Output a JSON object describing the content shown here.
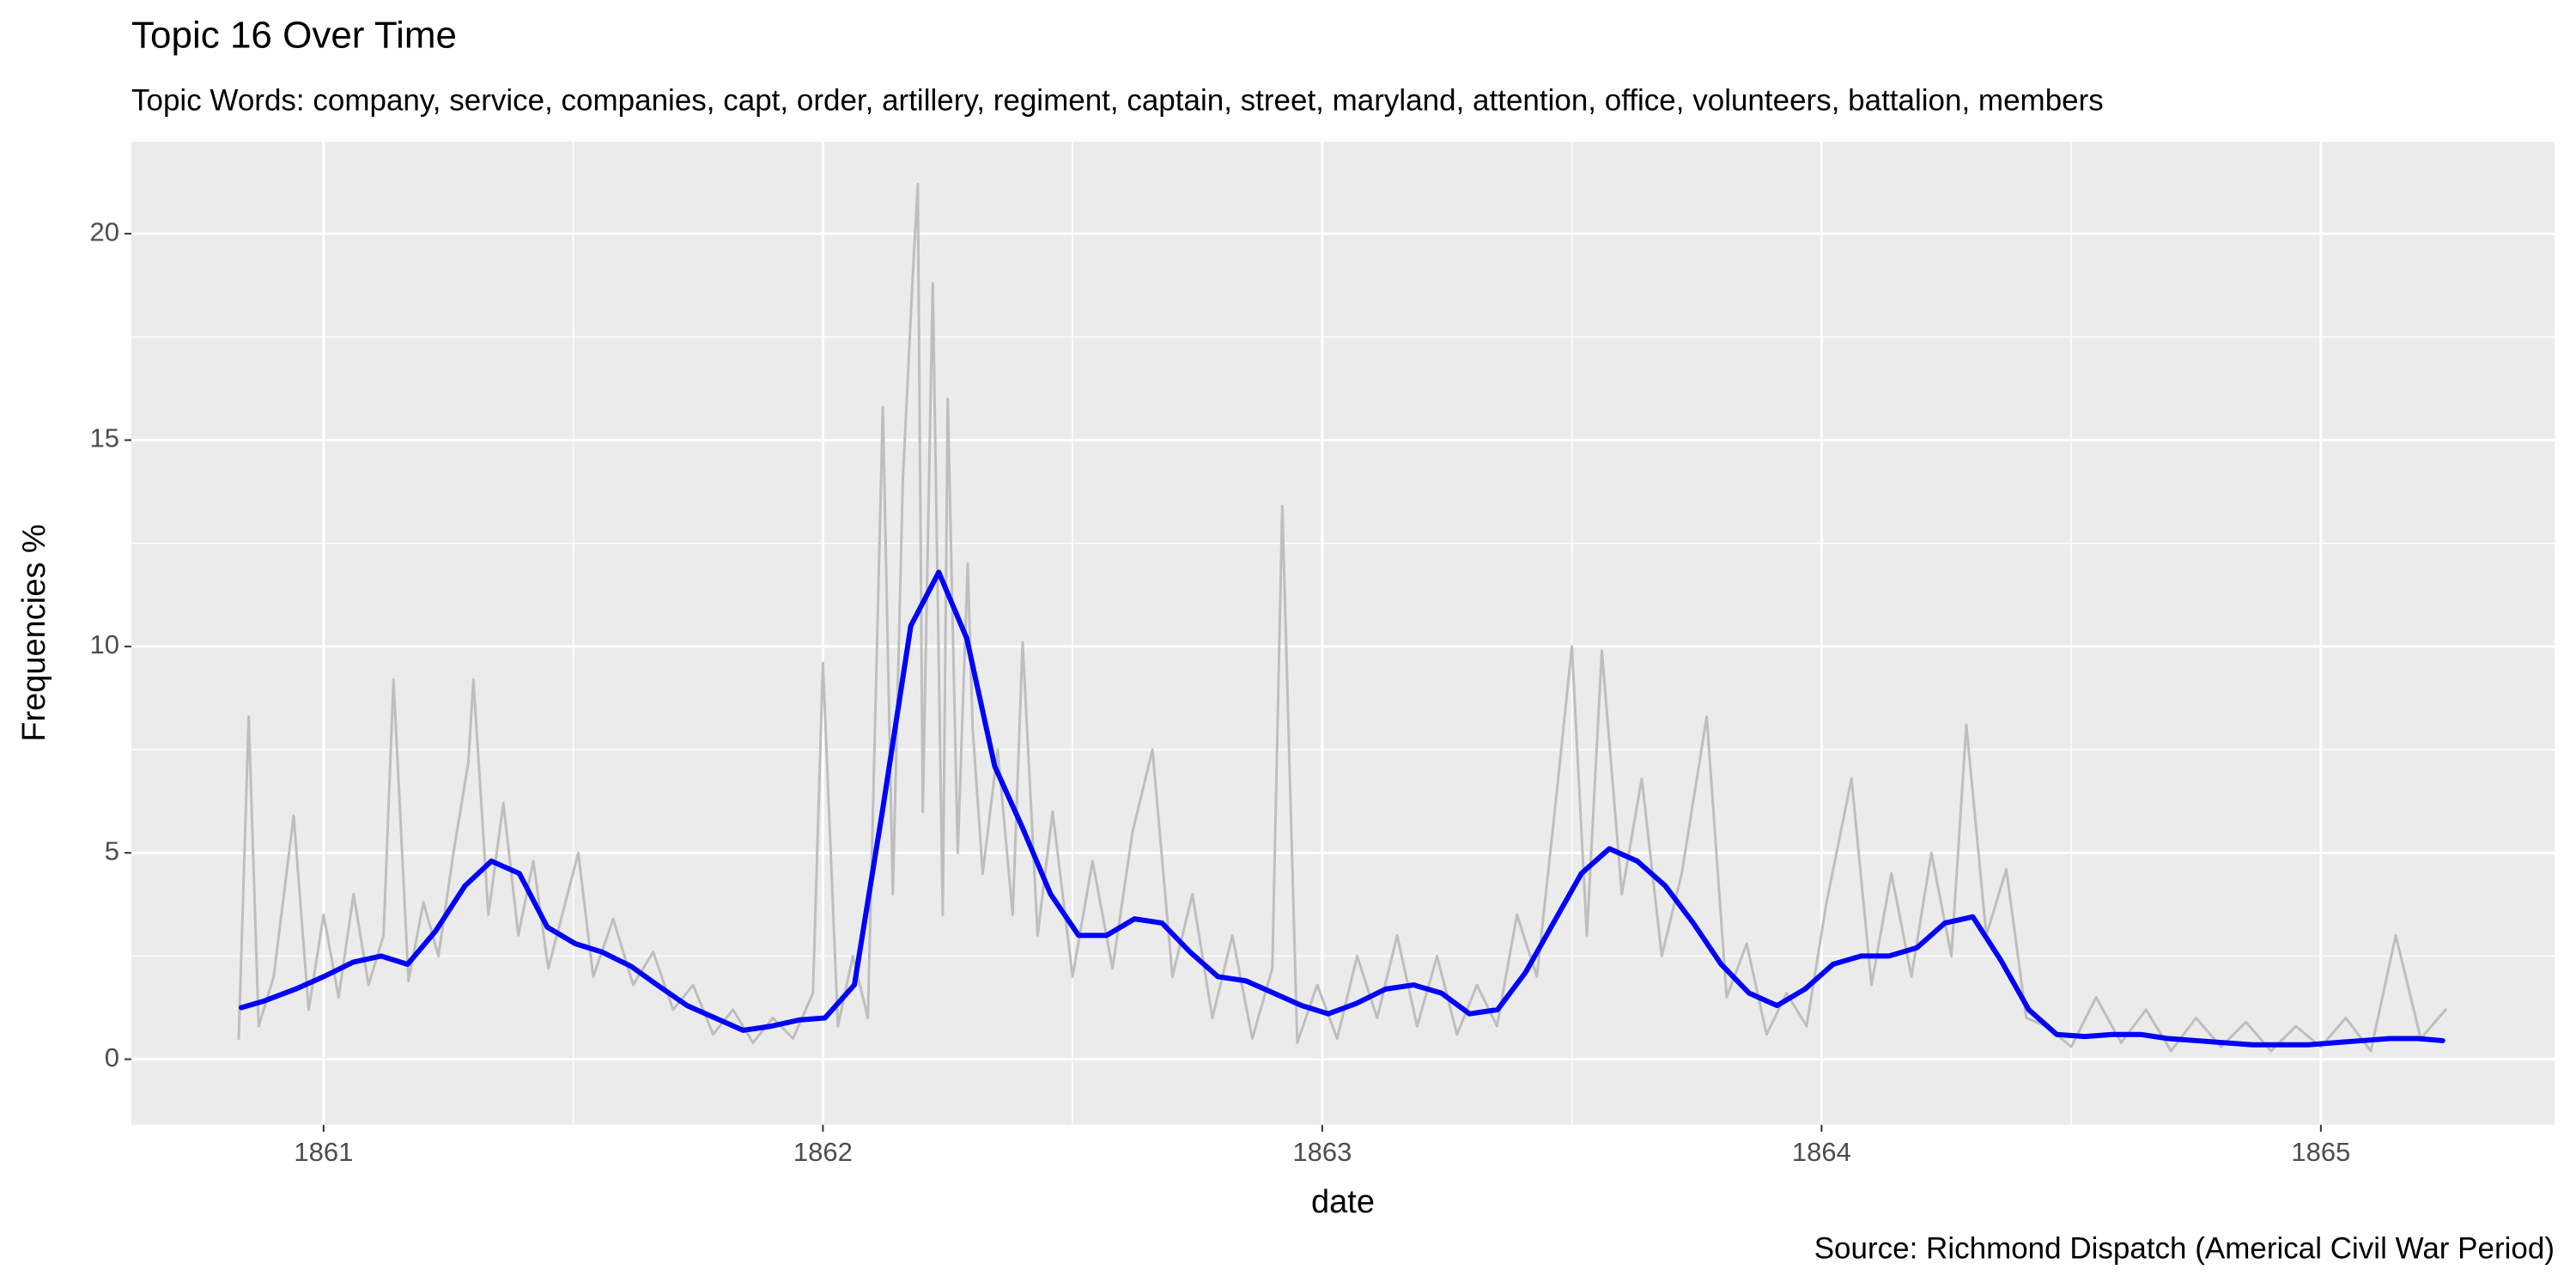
{
  "chart_data": {
    "type": "line",
    "title": "Topic 16 Over Time",
    "subtitle": "Topic Words: company, service, companies, capt, order, artillery, regiment, captain, street, maryland, attention, office, volunteers, battalion, members",
    "caption": "Source: Richmond Dispatch (Americal Civil War Period)",
    "x_label": "date",
    "y_label": "Frequencies %",
    "xlim": [
      1860.615,
      1865.468
    ],
    "ylim": [
      -1.59,
      22.23
    ],
    "xticks": [
      1861,
      1862,
      1863,
      1864,
      1865
    ],
    "yticks": [
      0,
      5,
      10,
      15,
      20
    ],
    "grid": true,
    "series": [
      {
        "color": "#bebebe",
        "x": [
          1860.83,
          1860.85,
          1860.87,
          1860.9,
          1860.94,
          1860.97,
          1861.0,
          1861.03,
          1861.06,
          1861.09,
          1861.12,
          1861.14,
          1861.17,
          1861.2,
          1861.23,
          1861.26,
          1861.29,
          1861.3,
          1861.33,
          1861.36,
          1861.39,
          1861.42,
          1861.45,
          1861.48,
          1861.51,
          1861.54,
          1861.58,
          1861.62,
          1861.66,
          1861.7,
          1861.74,
          1861.78,
          1861.82,
          1861.86,
          1861.9,
          1861.94,
          1861.98,
          1862.0,
          1862.03,
          1862.06,
          1862.09,
          1862.12,
          1862.14,
          1862.16,
          1862.18,
          1862.19,
          1862.2,
          1862.22,
          1862.24,
          1862.25,
          1862.27,
          1862.29,
          1862.3,
          1862.32,
          1862.35,
          1862.38,
          1862.4,
          1862.43,
          1862.46,
          1862.5,
          1862.54,
          1862.58,
          1862.62,
          1862.66,
          1862.7,
          1862.74,
          1862.78,
          1862.82,
          1862.86,
          1862.9,
          1862.92,
          1862.95,
          1862.99,
          1863.03,
          1863.07,
          1863.11,
          1863.15,
          1863.19,
          1863.23,
          1863.27,
          1863.31,
          1863.35,
          1863.39,
          1863.43,
          1863.47,
          1863.5,
          1863.53,
          1863.56,
          1863.6,
          1863.64,
          1863.68,
          1863.72,
          1863.77,
          1863.81,
          1863.85,
          1863.89,
          1863.93,
          1863.97,
          1864.01,
          1864.06,
          1864.1,
          1864.14,
          1864.18,
          1864.22,
          1864.26,
          1864.29,
          1864.33,
          1864.37,
          1864.41,
          1864.45,
          1864.5,
          1864.55,
          1864.6,
          1864.65,
          1864.7,
          1864.75,
          1864.8,
          1864.85,
          1864.9,
          1864.95,
          1865.0,
          1865.05,
          1865.1,
          1865.15,
          1865.2,
          1865.25
        ],
        "values": [
          0.5,
          8.3,
          0.8,
          2.0,
          5.9,
          1.2,
          3.5,
          1.5,
          4.0,
          1.8,
          3.0,
          9.2,
          1.9,
          3.8,
          2.5,
          5.0,
          7.2,
          9.2,
          3.5,
          6.2,
          3.0,
          4.8,
          2.2,
          3.6,
          5.0,
          2.0,
          3.4,
          1.8,
          2.6,
          1.2,
          1.8,
          0.6,
          1.2,
          0.4,
          1.0,
          0.5,
          1.6,
          9.6,
          0.8,
          2.5,
          1.0,
          15.8,
          4.0,
          14.0,
          19.0,
          21.2,
          6.0,
          18.8,
          3.5,
          16.0,
          5.0,
          12.0,
          8.0,
          4.5,
          7.5,
          3.5,
          10.1,
          3.0,
          6.0,
          2.0,
          4.8,
          2.2,
          5.5,
          7.5,
          2.0,
          4.0,
          1.0,
          3.0,
          0.5,
          2.2,
          13.4,
          0.4,
          1.8,
          0.5,
          2.5,
          1.0,
          3.0,
          0.8,
          2.5,
          0.6,
          1.8,
          0.8,
          3.5,
          2.0,
          6.5,
          10.0,
          3.0,
          9.9,
          4.0,
          6.8,
          2.5,
          4.5,
          8.3,
          1.5,
          2.8,
          0.6,
          1.6,
          0.8,
          3.8,
          6.8,
          1.8,
          4.5,
          2.0,
          5.0,
          2.5,
          8.1,
          3.0,
          4.6,
          1.0,
          0.8,
          0.3,
          1.5,
          0.4,
          1.2,
          0.2,
          1.0,
          0.3,
          0.9,
          0.2,
          0.8,
          0.3,
          1.0,
          0.2,
          3.0,
          0.5,
          1.2
        ]
      },
      {
        "color": "#0000ff",
        "x": [
          1860.835,
          1860.878,
          1860.944,
          1861.0,
          1861.059,
          1861.115,
          1861.168,
          1861.224,
          1861.283,
          1861.336,
          1861.392,
          1861.448,
          1861.504,
          1861.557,
          1861.616,
          1861.668,
          1861.728,
          1861.784,
          1861.84,
          1861.896,
          1861.952,
          1862.004,
          1862.063,
          1862.119,
          1862.176,
          1862.232,
          1862.288,
          1862.344,
          1862.4,
          1862.456,
          1862.512,
          1862.568,
          1862.624,
          1862.679,
          1862.735,
          1862.791,
          1862.847,
          1862.903,
          1862.959,
          1863.012,
          1863.068,
          1863.127,
          1863.183,
          1863.239,
          1863.295,
          1863.351,
          1863.407,
          1863.463,
          1863.519,
          1863.575,
          1863.631,
          1863.687,
          1863.743,
          1863.799,
          1863.855,
          1863.911,
          1863.967,
          1864.023,
          1864.079,
          1864.135,
          1864.191,
          1864.247,
          1864.303,
          1864.359,
          1864.415,
          1864.471,
          1864.527,
          1864.583,
          1864.639,
          1864.695,
          1864.751,
          1864.807,
          1864.863,
          1864.919,
          1864.975,
          1865.026,
          1865.082,
          1865.138,
          1865.194,
          1865.244
        ],
        "values": [
          1.25,
          1.4,
          1.7,
          2.0,
          2.35,
          2.5,
          2.3,
          3.1,
          4.2,
          4.8,
          4.5,
          3.2,
          2.8,
          2.6,
          2.25,
          1.8,
          1.3,
          1.0,
          0.7,
          0.8,
          0.95,
          1.0,
          1.8,
          6.0,
          10.5,
          11.8,
          10.2,
          7.1,
          5.6,
          4.0,
          3.0,
          3.0,
          3.4,
          3.3,
          2.6,
          2.0,
          1.9,
          1.6,
          1.3,
          1.1,
          1.35,
          1.7,
          1.8,
          1.6,
          1.1,
          1.2,
          2.1,
          3.3,
          4.5,
          5.1,
          4.8,
          4.2,
          3.3,
          2.3,
          1.6,
          1.3,
          1.7,
          2.3,
          2.5,
          2.5,
          2.7,
          3.3,
          3.45,
          2.4,
          1.2,
          0.6,
          0.55,
          0.6,
          0.6,
          0.5,
          0.45,
          0.4,
          0.35,
          0.35,
          0.35,
          0.4,
          0.45,
          0.5,
          0.5,
          0.45
        ]
      }
    ]
  }
}
